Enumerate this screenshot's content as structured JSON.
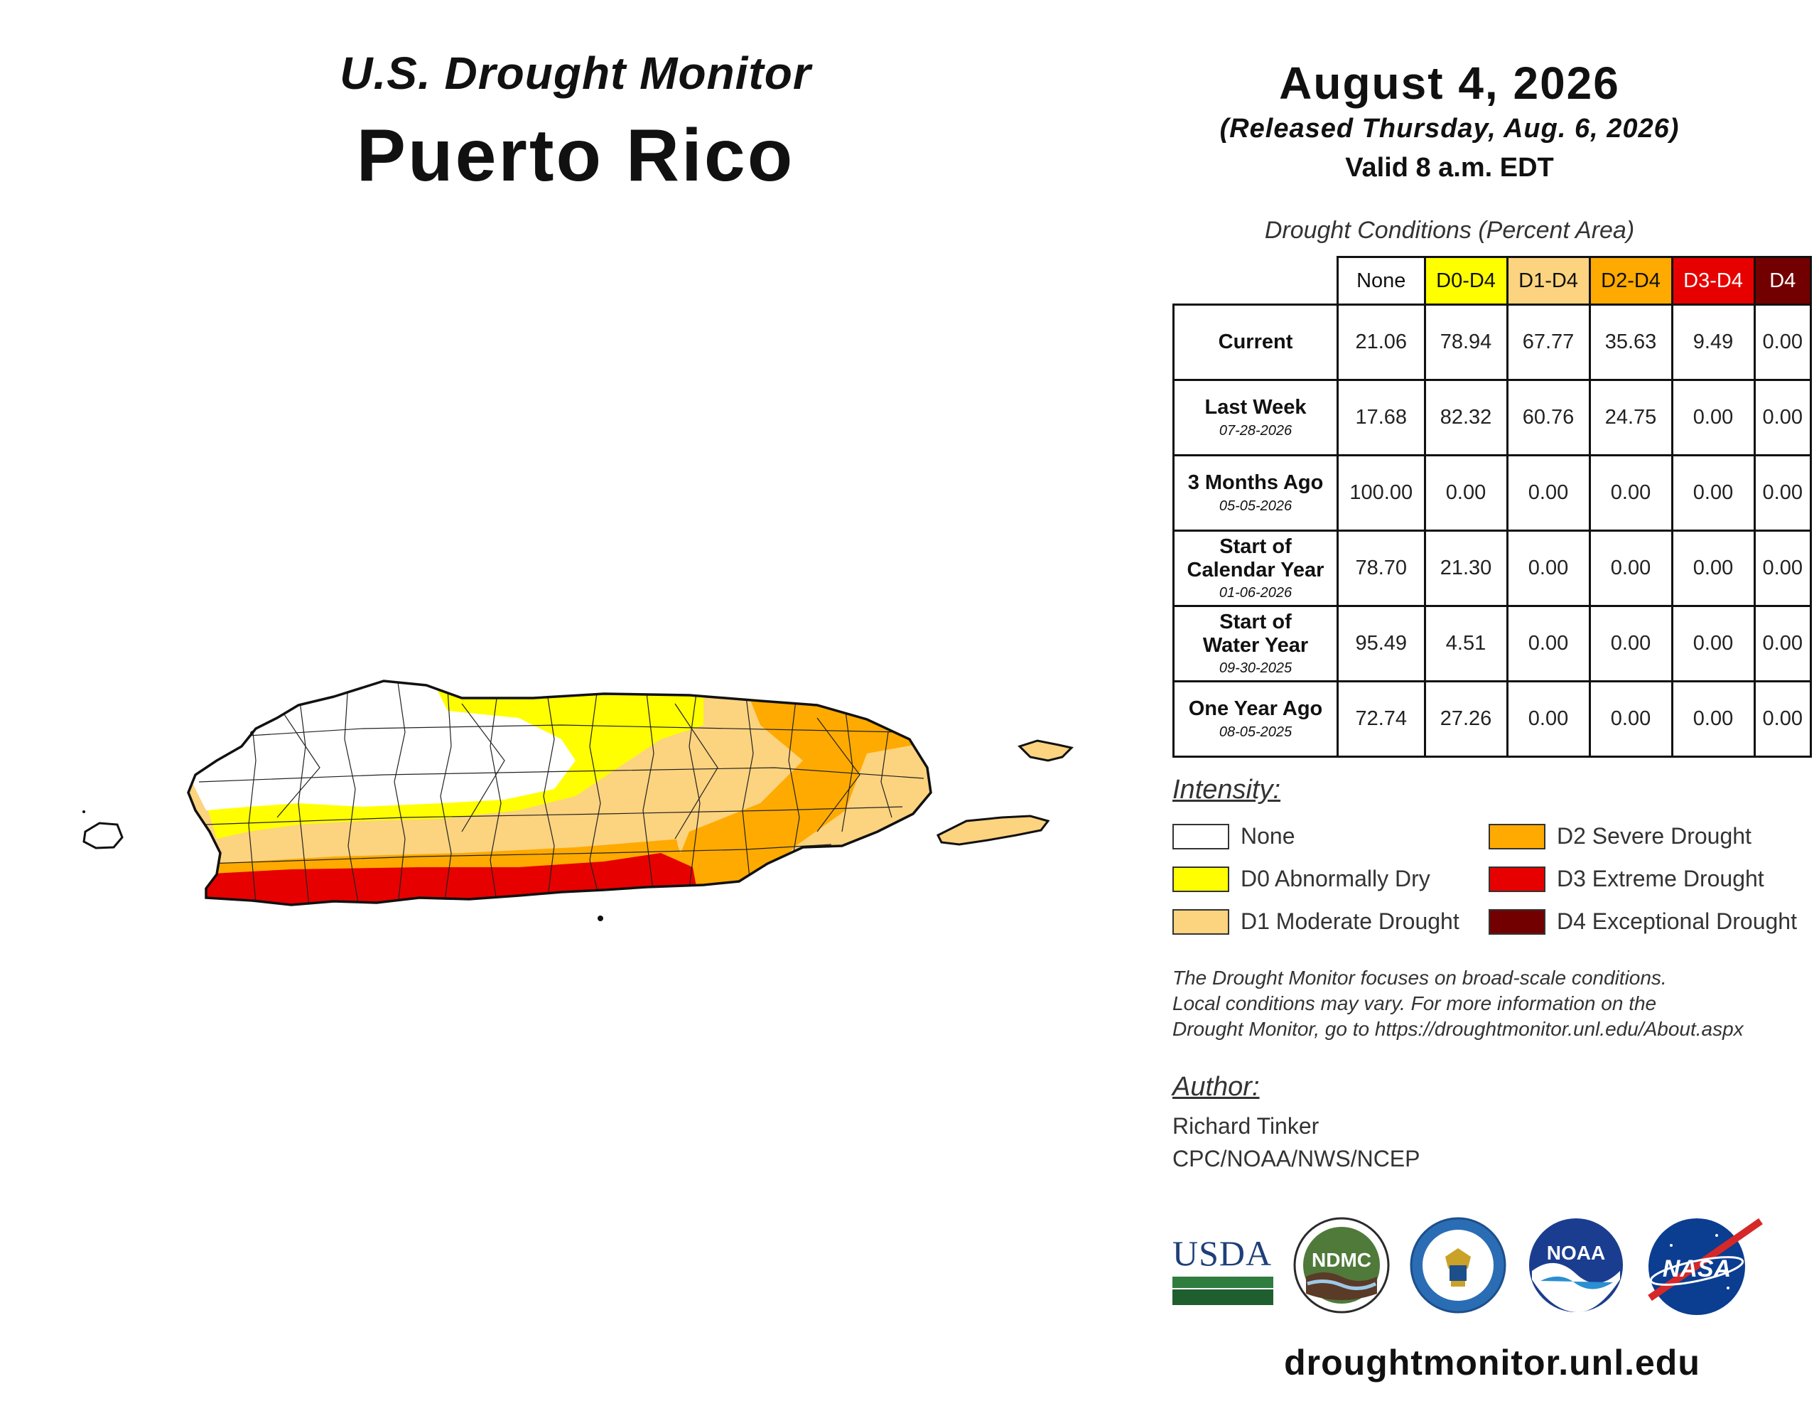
{
  "header": {
    "monitor_title": "U.S. Drought Monitor",
    "region": "Puerto Rico",
    "date": "August 4, 2026",
    "released": "(Released Thursday, Aug. 6, 2026)",
    "valid": "Valid 8 a.m. EDT"
  },
  "table": {
    "caption": "Drought Conditions (Percent Area)",
    "columns": [
      "None",
      "D0-D4",
      "D1-D4",
      "D2-D4",
      "D3-D4",
      "D4"
    ],
    "rows": [
      {
        "label": "Current",
        "label2": "",
        "date": "",
        "values": [
          "21.06",
          "78.94",
          "67.77",
          "35.63",
          "9.49",
          "0.00"
        ]
      },
      {
        "label": "Last Week",
        "label2": "",
        "date": "07-28-2026",
        "values": [
          "17.68",
          "82.32",
          "60.76",
          "24.75",
          "0.00",
          "0.00"
        ]
      },
      {
        "label": "3 Months Ago",
        "label2": "",
        "date": "05-05-2026",
        "values": [
          "100.00",
          "0.00",
          "0.00",
          "0.00",
          "0.00",
          "0.00"
        ]
      },
      {
        "label": "Start of",
        "label2": "Calendar Year",
        "date": "01-06-2026",
        "values": [
          "78.70",
          "21.30",
          "0.00",
          "0.00",
          "0.00",
          "0.00"
        ]
      },
      {
        "label": "Start of",
        "label2": "Water Year",
        "date": "09-30-2025",
        "values": [
          "95.49",
          "4.51",
          "0.00",
          "0.00",
          "0.00",
          "0.00"
        ]
      },
      {
        "label": "One Year Ago",
        "label2": "",
        "date": "08-05-2025",
        "values": [
          "72.74",
          "27.26",
          "0.00",
          "0.00",
          "0.00",
          "0.00"
        ]
      }
    ]
  },
  "legend": {
    "title": "Intensity:",
    "items": [
      {
        "label": "None",
        "color": "#ffffff"
      },
      {
        "label": "D0 Abnormally Dry",
        "color": "#ffff00"
      },
      {
        "label": "D1 Moderate Drought",
        "color": "#fcd37f"
      },
      {
        "label": "D2 Severe Drought",
        "color": "#ffaa00"
      },
      {
        "label": "D3 Extreme Drought",
        "color": "#e60000"
      },
      {
        "label": "D4 Exceptional Drought",
        "color": "#730000"
      }
    ]
  },
  "disclaimer": {
    "line1": "The Drought Monitor focuses on broad-scale conditions.",
    "line2": "Local conditions may vary. For more information on the",
    "line3": "Drought Monitor, go to https://droughtmonitor.unl.edu/About.aspx"
  },
  "author": {
    "title": "Author:",
    "name": "Richard Tinker",
    "org": "CPC/NOAA/NWS/NCEP"
  },
  "logos": {
    "usda": "USDA",
    "ndmc": "NDMC",
    "noaa": "NOAA",
    "nasa": "NASA"
  },
  "url": "droughtmonitor.unl.edu"
}
